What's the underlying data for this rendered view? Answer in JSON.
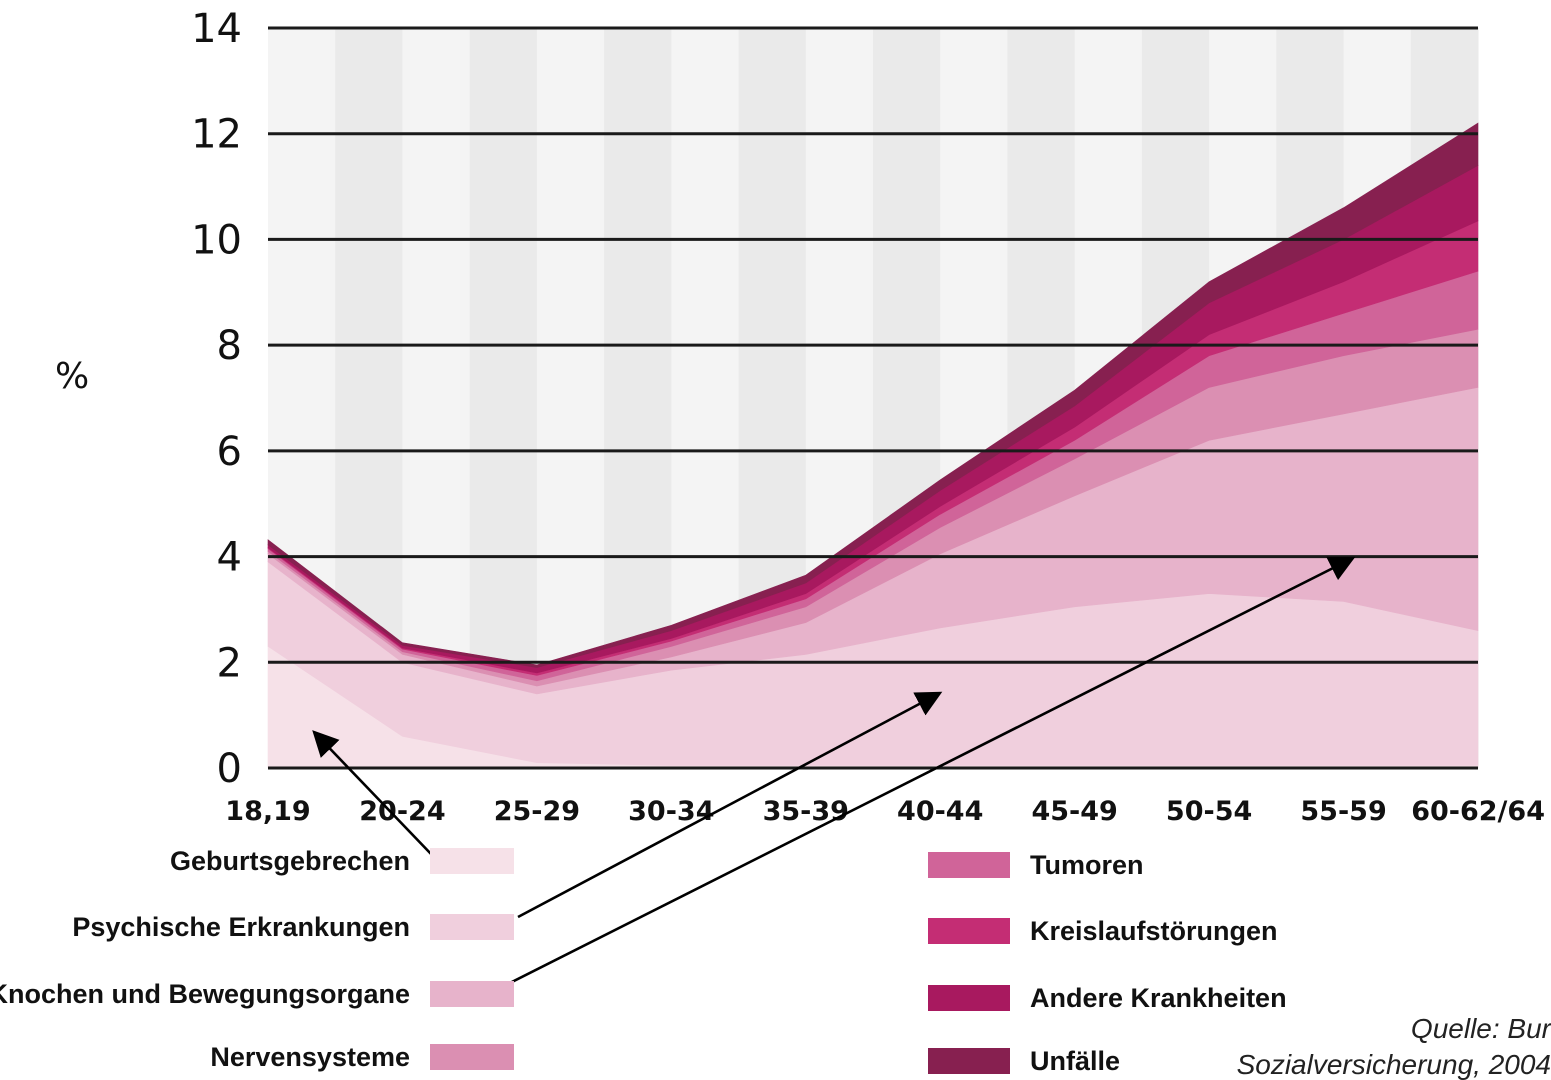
{
  "chart_data": {
    "type": "area",
    "stacked": true,
    "ylabel": "%",
    "ylim": [
      0,
      14
    ],
    "yticks": [
      0,
      2,
      4,
      6,
      8,
      10,
      12,
      14
    ],
    "grid": true,
    "categories": [
      "18,19",
      "20-24",
      "25-29",
      "30-34",
      "35-39",
      "40-44",
      "45-49",
      "50-54",
      "55-59",
      "60-62/64"
    ],
    "series": [
      {
        "name": "Geburtsgebrechen",
        "color": "#f6e1e8",
        "values": [
          2.3,
          0.6,
          0.1,
          0.05,
          0.05,
          0.05,
          0.05,
          0.05,
          0.05,
          0.05
        ]
      },
      {
        "name": "Psychische Erkrankungen",
        "color": "#f0cfdd",
        "values": [
          1.6,
          1.4,
          1.3,
          1.8,
          2.1,
          2.6,
          3.0,
          3.25,
          3.1,
          2.55
        ]
      },
      {
        "name": "Knochen und Bewegungsorgane",
        "color": "#e7b3cb",
        "values": [
          0.15,
          0.15,
          0.15,
          0.25,
          0.6,
          1.4,
          2.1,
          2.9,
          3.55,
          4.6
        ]
      },
      {
        "name": "Nervensysteme",
        "color": "#db8fb2",
        "values": [
          0.05,
          0.05,
          0.1,
          0.2,
          0.3,
          0.5,
          0.7,
          1.0,
          1.1,
          1.1
        ]
      },
      {
        "name": "Tumoren",
        "color": "#d06499",
        "values": [
          0.05,
          0.05,
          0.1,
          0.1,
          0.15,
          0.25,
          0.35,
          0.6,
          0.8,
          1.1
        ]
      },
      {
        "name": "Kreislaufstörungen",
        "color": "#c42d74",
        "values": [
          0.02,
          0.02,
          0.05,
          0.05,
          0.1,
          0.15,
          0.25,
          0.4,
          0.6,
          0.95
        ]
      },
      {
        "name": "Andere Krankheiten",
        "color": "#a8195f",
        "values": [
          0.05,
          0.05,
          0.1,
          0.15,
          0.2,
          0.3,
          0.4,
          0.6,
          0.8,
          1.05
        ]
      },
      {
        "name": "Unfälle",
        "color": "#872050",
        "values": [
          0.1,
          0.05,
          0.05,
          0.1,
          0.15,
          0.2,
          0.3,
          0.4,
          0.6,
          0.8
        ]
      }
    ],
    "legend_left": [
      "Geburtsgebrechen",
      "Psychische Erkrankungen",
      "Knochen und Bewegungsorgane",
      "Nervensysteme"
    ],
    "legend_right": [
      "Tumoren",
      "Kreislaufstörungen",
      "Andere Krankheiten",
      "Unfälle"
    ],
    "background_bands": [
      "#f4f4f4",
      "#eaeaea"
    ],
    "source_lines": [
      "Quelle: Bur",
      "Sozialversicherung, 2004"
    ]
  }
}
